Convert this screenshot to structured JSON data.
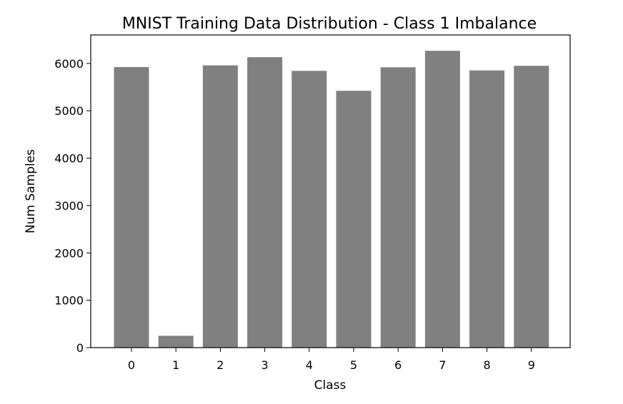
{
  "chart_data": {
    "type": "bar",
    "title": "MNIST Training Data Distribution - Class 1 Imbalance",
    "xlabel": "Class",
    "ylabel": "Num Samples",
    "categories": [
      "0",
      "1",
      "2",
      "3",
      "4",
      "5",
      "6",
      "7",
      "8",
      "9"
    ],
    "values": [
      5923,
      250,
      5958,
      6131,
      5842,
      5421,
      5918,
      6265,
      5851,
      5949
    ],
    "ylim": [
      0,
      6600
    ],
    "yticks": [
      0,
      1000,
      2000,
      3000,
      4000,
      5000,
      6000
    ],
    "bar_color": "#808080",
    "grid": false
  }
}
